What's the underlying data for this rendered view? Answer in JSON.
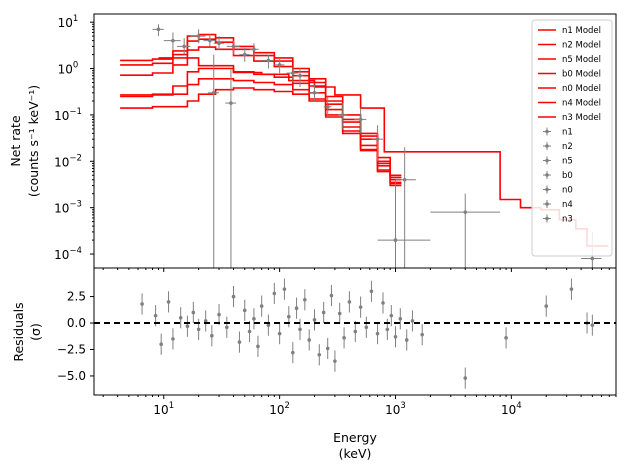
{
  "chart_data": [
    {
      "type": "step-line-with-errorbars",
      "xscale": "log",
      "yscale": "log",
      "xlim": [
        2.5,
        80000
      ],
      "ylim": [
        5e-05,
        15
      ],
      "ylabel_lines": [
        "Net rate",
        "(counts s⁻¹ keV⁻¹)"
      ],
      "yticks": [
        {
          "value": 10,
          "base": "10",
          "exp": "1"
        },
        {
          "value": 1,
          "base": "10",
          "exp": "0"
        },
        {
          "value": 0.1,
          "base": "10",
          "exp": "−1"
        },
        {
          "value": 0.01,
          "base": "10",
          "exp": "−2"
        },
        {
          "value": 0.001,
          "base": "10",
          "exp": "−3"
        },
        {
          "value": 0.0001,
          "base": "10",
          "exp": "−4"
        }
      ],
      "legend": {
        "position": "top-right",
        "model_entries": [
          "n1 Model",
          "n2 Model",
          "n5 Model",
          "b0 Model",
          "n0 Model",
          "n4 Model",
          "n3 Model"
        ],
        "data_entries": [
          "n1",
          "n2",
          "n5",
          "b0",
          "n0",
          "n4",
          "n3"
        ]
      },
      "model_color": "#ff0000",
      "data_color": "#808080",
      "model_series": [
        {
          "name": "n1 Model",
          "x": [
            4.2,
            8,
            12,
            16,
            20,
            28,
            40,
            60,
            90,
            130,
            180,
            250,
            350,
            500,
            700,
            900
          ],
          "y": [
            1.5,
            1.6,
            2.4,
            5.0,
            5.4,
            4.6,
            3.0,
            2.2,
            1.7,
            1.0,
            0.6,
            0.25,
            0.1,
            0.04,
            0.012,
            0.005
          ]
        },
        {
          "name": "n2 Model",
          "x": [
            4.2,
            8,
            12,
            16,
            20,
            28,
            40,
            60,
            90,
            130,
            180,
            250,
            350,
            500,
            700,
            900
          ],
          "y": [
            1.2,
            1.3,
            2.0,
            3.9,
            4.3,
            3.7,
            2.6,
            1.9,
            1.45,
            0.85,
            0.5,
            0.2,
            0.08,
            0.035,
            0.01,
            0.0045
          ]
        },
        {
          "name": "n5 Model",
          "x": [
            4.2,
            8,
            12,
            16,
            20,
            28,
            40,
            60,
            90,
            130,
            180,
            250,
            350,
            500,
            700,
            900
          ],
          "y": [
            0.72,
            0.8,
            1.2,
            2.5,
            2.9,
            2.6,
            1.9,
            1.45,
            1.1,
            0.7,
            0.42,
            0.17,
            0.07,
            0.03,
            0.009,
            0.004
          ]
        },
        {
          "name": "b0 Model",
          "x": [
            9,
            20,
            40,
            70,
            120,
            200,
            300,
            500,
            800,
            1000,
            2000,
            8000,
            12000,
            18000,
            26000,
            36000,
            45000,
            55000
          ],
          "y": [
            1.7,
            1.15,
            0.82,
            0.75,
            0.55,
            0.4,
            0.27,
            0.14,
            0.016,
            0.016,
            0.016,
            0.0015,
            0.001,
            0.0009,
            0.00055,
            0.00035,
            0.00015,
            0.00015
          ]
        },
        {
          "name": "n0 Model",
          "x": [
            4.2,
            8,
            12,
            16,
            20,
            28,
            40,
            60,
            90,
            130,
            180,
            250,
            350,
            500,
            700,
            900
          ],
          "y": [
            0.25,
            0.27,
            0.42,
            0.85,
            1.0,
            1.0,
            0.85,
            0.75,
            0.65,
            0.48,
            0.3,
            0.13,
            0.055,
            0.022,
            0.008,
            0.0035
          ]
        },
        {
          "name": "n4 Model",
          "x": [
            4.2,
            8,
            12,
            16,
            20,
            28,
            40,
            60,
            90,
            130,
            180,
            250,
            350,
            500,
            700,
            900
          ],
          "y": [
            0.27,
            0.28,
            0.28,
            0.45,
            0.6,
            0.6,
            0.55,
            0.5,
            0.45,
            0.35,
            0.22,
            0.1,
            0.045,
            0.018,
            0.0065,
            0.0033
          ]
        },
        {
          "name": "n3 Model",
          "x": [
            4.2,
            8,
            12,
            16,
            20,
            28,
            40,
            60,
            90,
            130,
            180,
            250,
            350,
            500,
            700,
            900
          ],
          "y": [
            0.14,
            0.15,
            0.15,
            0.2,
            0.28,
            0.35,
            0.38,
            0.35,
            0.32,
            0.28,
            0.2,
            0.09,
            0.04,
            0.017,
            0.006,
            0.003
          ]
        }
      ],
      "data_points": [
        {
          "x": 9,
          "y": 7.0,
          "xerr": [
            8,
            10
          ],
          "yerr": [
            5,
            9
          ]
        },
        {
          "x": 12,
          "y": 4.0,
          "xerr": [
            10,
            14
          ],
          "yerr": [
            2.5,
            6
          ]
        },
        {
          "x": 15,
          "y": 3.0,
          "xerr": [
            13,
            17
          ],
          "yerr": [
            2,
            4.5
          ]
        },
        {
          "x": 20,
          "y": 5.0,
          "xerr": [
            17,
            23
          ],
          "yerr": [
            3.5,
            7
          ]
        },
        {
          "x": 25,
          "y": 4.0,
          "xerr": [
            22,
            28
          ],
          "yerr": [
            3,
            5.5
          ]
        },
        {
          "x": 30,
          "y": 3.5,
          "xerr": [
            27,
            33
          ],
          "yerr": [
            2.5,
            5
          ]
        },
        {
          "x": 40,
          "y": 3.0,
          "xerr": [
            35,
            45
          ],
          "yerr": [
            2,
            4
          ]
        },
        {
          "x": 50,
          "y": 2.0,
          "xerr": [
            45,
            55
          ],
          "yerr": [
            1.4,
            2.8
          ]
        },
        {
          "x": 60,
          "y": 2.6,
          "xerr": [
            55,
            66
          ],
          "yerr": [
            1.8,
            3.5
          ]
        },
        {
          "x": 80,
          "y": 1.5,
          "xerr": [
            70,
            90
          ],
          "yerr": [
            1.0,
            2.0
          ]
        },
        {
          "x": 100,
          "y": 1.2,
          "xerr": [
            90,
            110
          ],
          "yerr": [
            0.8,
            1.7
          ]
        },
        {
          "x": 130,
          "y": 0.8,
          "xerr": [
            115,
            145
          ],
          "yerr": [
            0.5,
            1.1
          ]
        },
        {
          "x": 150,
          "y": 0.7,
          "xerr": [
            140,
            160
          ],
          "yerr": [
            0.4,
            1.0
          ]
        },
        {
          "x": 200,
          "y": 0.3,
          "xerr": [
            180,
            220
          ],
          "yerr": [
            0.2,
            0.45
          ]
        },
        {
          "x": 260,
          "y": 0.15,
          "xerr": [
            240,
            280
          ],
          "yerr": [
            0.09,
            0.25
          ]
        },
        {
          "x": 350,
          "y": 0.1,
          "xerr": [
            320,
            380
          ],
          "yerr": [
            0.05,
            0.18
          ]
        },
        {
          "x": 500,
          "y": 0.08,
          "xerr": [
            440,
            560
          ],
          "yerr": [
            0.04,
            0.14
          ]
        },
        {
          "x": 700,
          "y": 0.03,
          "xerr": [
            620,
            780
          ],
          "yerr": [
            0.01,
            0.06
          ]
        },
        {
          "x": 1000,
          "y": 0.0002,
          "xerr": [
            700,
            2000
          ],
          "yerr": [
            5e-05,
            0.004
          ]
        },
        {
          "x": 4000,
          "y": 0.0008,
          "xerr": [
            2000,
            8000
          ],
          "yerr": [
            5e-05,
            0.002
          ]
        },
        {
          "x": 50000,
          "y": 8e-05,
          "xerr": [
            40000,
            60000
          ],
          "yerr": [
            5e-05,
            0.0003
          ]
        },
        {
          "x": 27,
          "y": 0.3,
          "xerr": [
            24,
            30
          ],
          "yerr": [
            5e-05,
            2.0
          ]
        },
        {
          "x": 38,
          "y": 0.18,
          "xerr": [
            34,
            42
          ],
          "yerr": [
            5e-05,
            1.0
          ]
        },
        {
          "x": 1200,
          "y": 0.004,
          "xerr": [
            1000,
            1500
          ],
          "yerr": [
            5e-05,
            0.02
          ]
        }
      ]
    },
    {
      "type": "scatter-with-errorbars",
      "xscale": "log",
      "xlim": [
        2.5,
        80000
      ],
      "ylim": [
        -6.8,
        5.2
      ],
      "ylabel_lines": [
        "Residuals",
        "(σ)"
      ],
      "xlabel_lines": [
        "Energy",
        "(keV)"
      ],
      "yticks": [
        "2.5",
        "0.0",
        "−2.5",
        "−5.0"
      ],
      "yticks_values": [
        2.5,
        0.0,
        -2.5,
        -5.0
      ],
      "xticks": [
        {
          "value": 10,
          "base": "10",
          "exp": "1"
        },
        {
          "value": 100,
          "base": "10",
          "exp": "2"
        },
        {
          "value": 1000,
          "base": "10",
          "exp": "3"
        },
        {
          "value": 10000,
          "base": "10",
          "exp": "4"
        }
      ],
      "zero_line": true,
      "points": [
        {
          "x": 6.5,
          "y": 1.8,
          "err": 1
        },
        {
          "x": 8.5,
          "y": 0.7,
          "err": 1
        },
        {
          "x": 9.5,
          "y": -2.0,
          "err": 1
        },
        {
          "x": 11,
          "y": 2.0,
          "err": 1
        },
        {
          "x": 12,
          "y": -1.5,
          "err": 1
        },
        {
          "x": 14,
          "y": 0.5,
          "err": 1
        },
        {
          "x": 16,
          "y": -0.3,
          "err": 1
        },
        {
          "x": 18,
          "y": 1.0,
          "err": 1
        },
        {
          "x": 20,
          "y": -0.6,
          "err": 1
        },
        {
          "x": 23,
          "y": 0.2,
          "err": 1
        },
        {
          "x": 26,
          "y": -1.2,
          "err": 1
        },
        {
          "x": 30,
          "y": 0.8,
          "err": 1
        },
        {
          "x": 35,
          "y": -0.4,
          "err": 1
        },
        {
          "x": 40,
          "y": 2.5,
          "err": 1
        },
        {
          "x": 45,
          "y": -1.8,
          "err": 1
        },
        {
          "x": 50,
          "y": 1.2,
          "err": 1
        },
        {
          "x": 55,
          "y": -0.8,
          "err": 1
        },
        {
          "x": 60,
          "y": 0.4,
          "err": 1
        },
        {
          "x": 65,
          "y": -2.2,
          "err": 1
        },
        {
          "x": 70,
          "y": 1.6,
          "err": 1
        },
        {
          "x": 80,
          "y": -0.2,
          "err": 1
        },
        {
          "x": 90,
          "y": 2.8,
          "err": 1
        },
        {
          "x": 100,
          "y": -1.0,
          "err": 1
        },
        {
          "x": 110,
          "y": 3.2,
          "err": 1
        },
        {
          "x": 120,
          "y": 0.6,
          "err": 1
        },
        {
          "x": 130,
          "y": -2.8,
          "err": 1
        },
        {
          "x": 140,
          "y": 1.4,
          "err": 1
        },
        {
          "x": 150,
          "y": -0.6,
          "err": 1
        },
        {
          "x": 165,
          "y": 2.2,
          "err": 1
        },
        {
          "x": 180,
          "y": -1.6,
          "err": 1
        },
        {
          "x": 200,
          "y": 0.3,
          "err": 1
        },
        {
          "x": 220,
          "y": -3.0,
          "err": 1
        },
        {
          "x": 240,
          "y": 1.0,
          "err": 1
        },
        {
          "x": 260,
          "y": -2.4,
          "err": 1
        },
        {
          "x": 280,
          "y": 2.6,
          "err": 1
        },
        {
          "x": 300,
          "y": -3.6,
          "err": 1
        },
        {
          "x": 330,
          "y": 0.9,
          "err": 1
        },
        {
          "x": 360,
          "y": -1.4,
          "err": 1
        },
        {
          "x": 400,
          "y": 2.0,
          "err": 1
        },
        {
          "x": 450,
          "y": -0.8,
          "err": 1
        },
        {
          "x": 500,
          "y": 1.5,
          "err": 1
        },
        {
          "x": 560,
          "y": -0.4,
          "err": 1
        },
        {
          "x": 620,
          "y": 3.0,
          "err": 1
        },
        {
          "x": 700,
          "y": -1.0,
          "err": 1
        },
        {
          "x": 780,
          "y": 1.9,
          "err": 1
        },
        {
          "x": 850,
          "y": -0.6,
          "err": 1
        },
        {
          "x": 920,
          "y": 0.7,
          "err": 1
        },
        {
          "x": 1000,
          "y": -1.3,
          "err": 1
        },
        {
          "x": 1100,
          "y": 0.4,
          "err": 1
        },
        {
          "x": 1250,
          "y": -1.6,
          "err": 1
        },
        {
          "x": 1400,
          "y": 0.2,
          "err": 1
        },
        {
          "x": 1700,
          "y": -1.1,
          "err": 1
        },
        {
          "x": 4000,
          "y": -5.2,
          "err": 1
        },
        {
          "x": 9000,
          "y": -1.4,
          "err": 1
        },
        {
          "x": 20000,
          "y": 1.6,
          "err": 1
        },
        {
          "x": 33000,
          "y": 3.2,
          "err": 1
        },
        {
          "x": 45000,
          "y": 0.0,
          "err": 1
        },
        {
          "x": 50000,
          "y": -0.2,
          "err": 1
        }
      ]
    }
  ]
}
